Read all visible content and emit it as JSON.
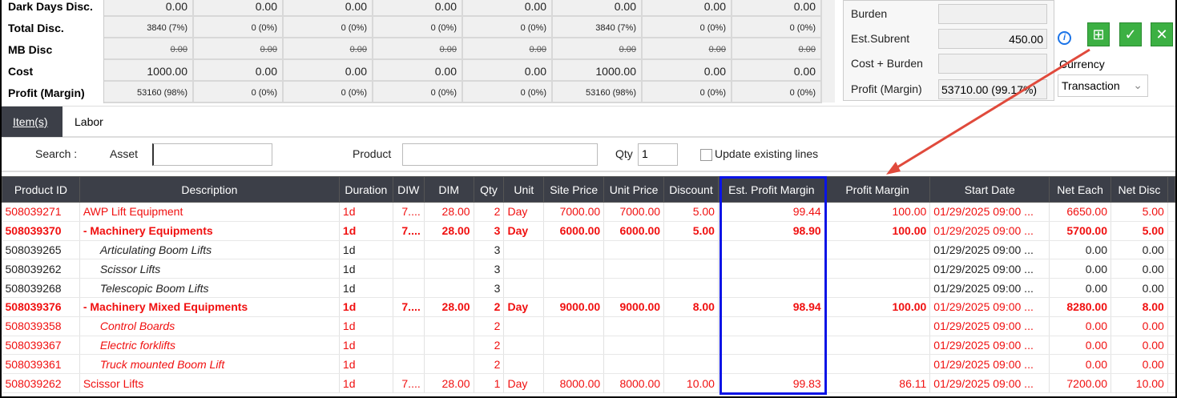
{
  "summary": {
    "columns_count": 8,
    "rows": [
      {
        "label": "Dark Days Disc.",
        "values": [
          "0.00",
          "0.00",
          "0.00",
          "0.00",
          "0.00",
          "0.00",
          "0.00",
          "0.00"
        ],
        "style": "normal"
      },
      {
        "label": "Total Disc.",
        "values": [
          "3840 (7%)",
          "0 (0%)",
          "0 (0%)",
          "0 (0%)",
          "0 (0%)",
          "3840 (7%)",
          "0 (0%)",
          "0 (0%)"
        ],
        "style": "sm"
      },
      {
        "label": "MB Disc",
        "values": [
          "0.00",
          "0.00",
          "0.00",
          "0.00",
          "0.00",
          "0.00",
          "0.00",
          "0.00"
        ],
        "style": "strike"
      },
      {
        "label": "Cost",
        "values": [
          "1000.00",
          "0.00",
          "0.00",
          "0.00",
          "0.00",
          "1000.00",
          "0.00",
          "0.00"
        ],
        "style": "normal"
      },
      {
        "label": "Profit (Margin)",
        "values": [
          "53160 (98%)",
          "0 (0%)",
          "0 (0%)",
          "0 (0%)",
          "0 (0%)",
          "53160 (98%)",
          "0 (0%)",
          "0 (0%)"
        ],
        "style": "sm"
      }
    ]
  },
  "right_panel": {
    "burden_label": "Burden",
    "burden_value": "",
    "subrent_label": "Est.Subrent",
    "subrent_value": "450.00",
    "cost_burden_label": "Cost + Burden",
    "cost_burden_value": "",
    "profit_label": "Profit (Margin)",
    "profit_value": "53710.00 (99.17%)",
    "currency_label": "Currency",
    "currency_value": "Transaction"
  },
  "tabs": [
    {
      "label": "Item(s)",
      "active": true
    },
    {
      "label": "Labor",
      "active": false
    }
  ],
  "search": {
    "label": "Search :",
    "asset_label": "Asset",
    "asset_value": "",
    "product_label": "Product",
    "product_value": "",
    "qty_label": "Qty",
    "qty_value": "1",
    "update_label": "Update existing lines",
    "update_checked": false
  },
  "table": {
    "columns": [
      "Product ID",
      "Description",
      "Duration",
      "DIW",
      "DIM",
      "Qty",
      "Unit",
      "Site Price",
      "Unit Price",
      "Discount",
      "Est. Profit Margin",
      "Profit Margin",
      "Start Date",
      "Net Each",
      "Net Disc"
    ],
    "rows": [
      {
        "style": "red",
        "cells": [
          "508039271",
          "AWP Lift Equipment",
          "1d",
          "7....",
          "28.00",
          "2",
          "Day",
          "7000.00",
          "7000.00",
          "5.00",
          "99.44",
          "100.00",
          "01/29/2025 09:00 ...",
          "6650.00",
          "5.00"
        ]
      },
      {
        "style": "red bold",
        "cells": [
          "508039370",
          "- Machinery Equipments",
          "1d",
          "7....",
          "28.00",
          "3",
          "Day",
          "6000.00",
          "6000.00",
          "5.00",
          "98.90",
          "100.00",
          "01/29/2025 09:00 ...",
          "5700.00",
          "5.00"
        ]
      },
      {
        "style": "child",
        "cells": [
          "508039265",
          "Articulating Boom Lifts",
          "1d",
          "",
          "",
          "3",
          "",
          "",
          "",
          "",
          "",
          "",
          "01/29/2025 09:00 ...",
          "0.00",
          "0.00"
        ]
      },
      {
        "style": "child",
        "cells": [
          "508039262",
          "Scissor Lifts",
          "1d",
          "",
          "",
          "3",
          "",
          "",
          "",
          "",
          "",
          "",
          "01/29/2025 09:00 ...",
          "0.00",
          "0.00"
        ]
      },
      {
        "style": "child",
        "cells": [
          "508039268",
          "Telescopic Boom Lifts",
          "1d",
          "",
          "",
          "3",
          "",
          "",
          "",
          "",
          "",
          "",
          "01/29/2025 09:00 ...",
          "0.00",
          "0.00"
        ]
      },
      {
        "style": "red bold",
        "cells": [
          "508039376",
          "- Machinery Mixed Equipments",
          "1d",
          "7....",
          "28.00",
          "2",
          "Day",
          "9000.00",
          "9000.00",
          "8.00",
          "98.94",
          "100.00",
          "01/29/2025 09:00 ...",
          "8280.00",
          "8.00"
        ]
      },
      {
        "style": "red child",
        "cells": [
          "508039358",
          "Control Boards",
          "1d",
          "",
          "",
          "2",
          "",
          "",
          "",
          "",
          "",
          "",
          "01/29/2025 09:00 ...",
          "0.00",
          "0.00"
        ]
      },
      {
        "style": "red child",
        "cells": [
          "508039367",
          "Electric forklifts",
          "1d",
          "",
          "",
          "2",
          "",
          "",
          "",
          "",
          "",
          "",
          "01/29/2025 09:00 ...",
          "0.00",
          "0.00"
        ]
      },
      {
        "style": "red child",
        "cells": [
          "508039361",
          "Truck mounted Boom Lift",
          "1d",
          "",
          "",
          "2",
          "",
          "",
          "",
          "",
          "",
          "",
          "01/29/2025 09:00 ...",
          "0.00",
          "0.00"
        ]
      },
      {
        "style": "red",
        "cells": [
          "508039262",
          "Scissor Lifts",
          "1d",
          "7....",
          "28.00",
          "1",
          "Day",
          "8000.00",
          "8000.00",
          "10.00",
          "99.83",
          "86.11",
          "01/29/2025 09:00 ...",
          "7200.00",
          "10.00"
        ]
      }
    ]
  },
  "colors": {
    "header_bg": "#3c3f48",
    "row_red": "#f01010",
    "highlight_box": "#0a14e6",
    "annotation_arrow": "#e04a3c",
    "button_green": "#3cb043"
  },
  "icons": [
    "info-icon",
    "calculator-icon",
    "check-circle-icon",
    "close-circle-icon",
    "chevron-down-icon"
  ]
}
